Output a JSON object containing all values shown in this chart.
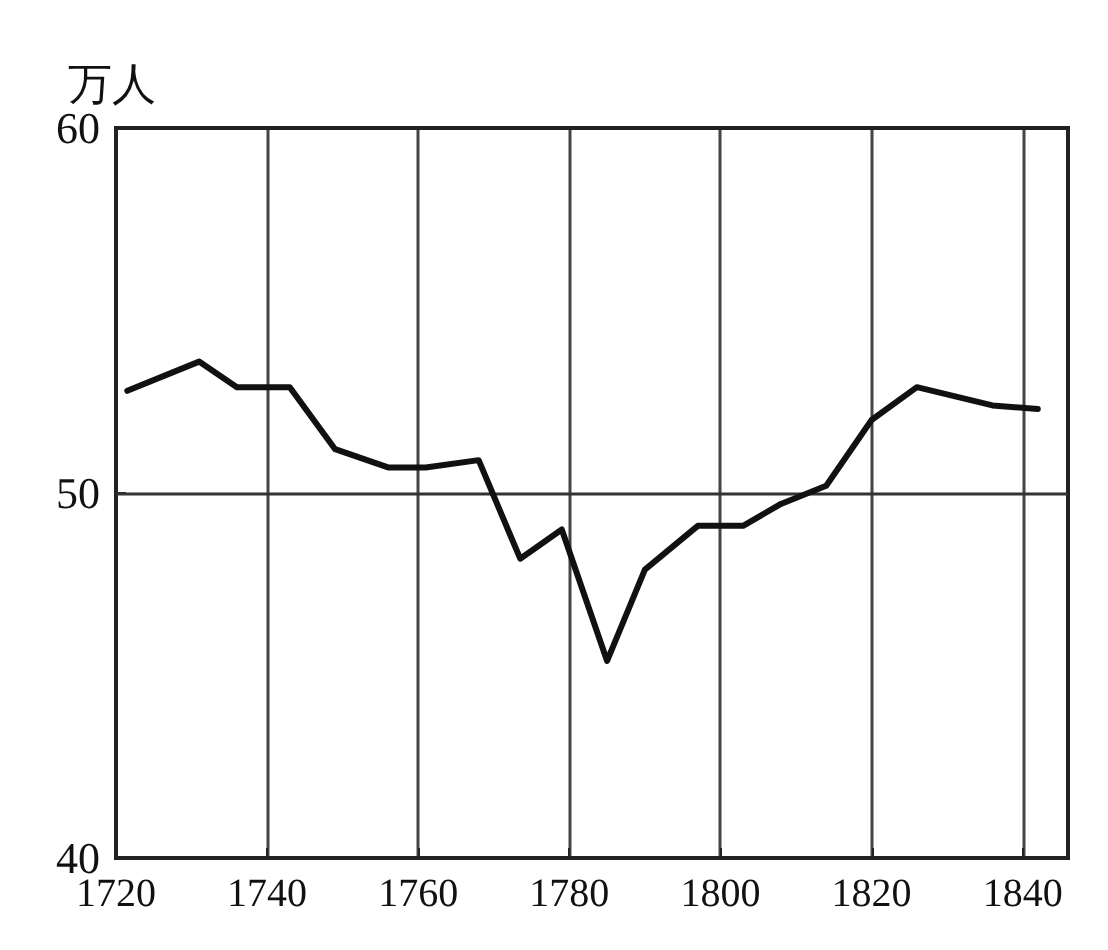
{
  "chart_data": {
    "type": "line",
    "ylabel": "万人",
    "x": [
      1721.5,
      1731,
      1736,
      1743,
      1749,
      1756,
      1761,
      1768,
      1773.5,
      1779,
      1785,
      1790,
      1797,
      1803,
      1808,
      1814,
      1820,
      1826,
      1836,
      1842
    ],
    "series": [
      {
        "color": "#111111",
        "values": [
          52.8,
          53.6,
          52.9,
          52.9,
          51.2,
          50.7,
          50.7,
          50.9,
          48.2,
          49.0,
          45.4,
          47.9,
          49.1,
          49.1,
          49.7,
          50.2,
          52.0,
          52.9,
          52.4,
          52.3
        ]
      }
    ],
    "xlim": [
      1720,
      1846
    ],
    "xticks": [
      1720,
      1740,
      1760,
      1780,
      1800,
      1820,
      1840
    ],
    "ylim": [
      40,
      60
    ],
    "yticks": [
      40,
      50,
      60
    ],
    "grid": "x",
    "marker": "none",
    "line_style": "solid",
    "ref_lines": [
      {
        "axis": "y",
        "value": 50,
        "color": "#333333"
      }
    ]
  }
}
